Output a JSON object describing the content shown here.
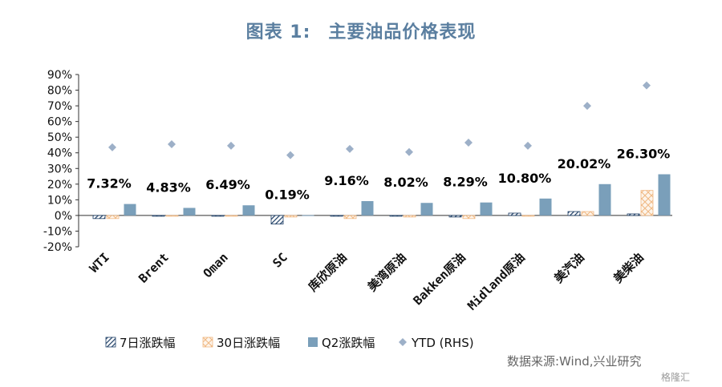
{
  "figure": {
    "title_prefix": "图表 1:",
    "title_main": "主要油品价格表现",
    "source": "数据来源:Wind,兴业研究",
    "watermark": "格隆汇"
  },
  "chart_data": {
    "type": "bar",
    "categories": [
      "WTI",
      "Brent",
      "Oman",
      "SC",
      "库欣原油",
      "美湾原油",
      "Bakken原油",
      "Midland原油",
      "美汽油",
      "美柴油"
    ],
    "series": [
      {
        "name": "7日涨跌幅",
        "values": [
          -2.0,
          -0.3,
          -0.3,
          -5.5,
          -0.3,
          -0.3,
          -1.0,
          1.5,
          2.5,
          1.0
        ],
        "color": "#1f3f66",
        "pattern": "diagonal"
      },
      {
        "name": "30日涨跌幅",
        "values": [
          -2.0,
          -0.3,
          -0.3,
          -1.0,
          -2.0,
          -1.0,
          -2.0,
          -0.5,
          2.5,
          16.0
        ],
        "color": "#f0b882",
        "pattern": "crosshatch"
      },
      {
        "name": "Q2涨跌幅",
        "values": [
          7.32,
          4.83,
          6.49,
          0.19,
          9.16,
          8.02,
          8.29,
          10.8,
          20.02,
          26.3
        ],
        "color": "#7a9fba",
        "pattern": "solid"
      },
      {
        "name": "YTD (RHS)",
        "values": [
          43.5,
          45.5,
          44.5,
          38.5,
          42.5,
          40.5,
          46.5,
          44.5,
          70.0,
          83.0
        ],
        "color": "#9db0c8",
        "marker": "diamond"
      }
    ],
    "data_labels": [
      "7.32%",
      "4.83%",
      "6.49%",
      "0.19%",
      "9.16%",
      "8.02%",
      "8.29%",
      "10.80%",
      "20.02%",
      "26.30%"
    ],
    "y_ticks": [
      "90%",
      "80%",
      "70%",
      "60%",
      "50%",
      "40%",
      "30%",
      "20%",
      "10%",
      "0%",
      "-10%",
      "-20%"
    ],
    "ylim": [
      -20,
      90
    ],
    "legend_position": "bottom"
  }
}
